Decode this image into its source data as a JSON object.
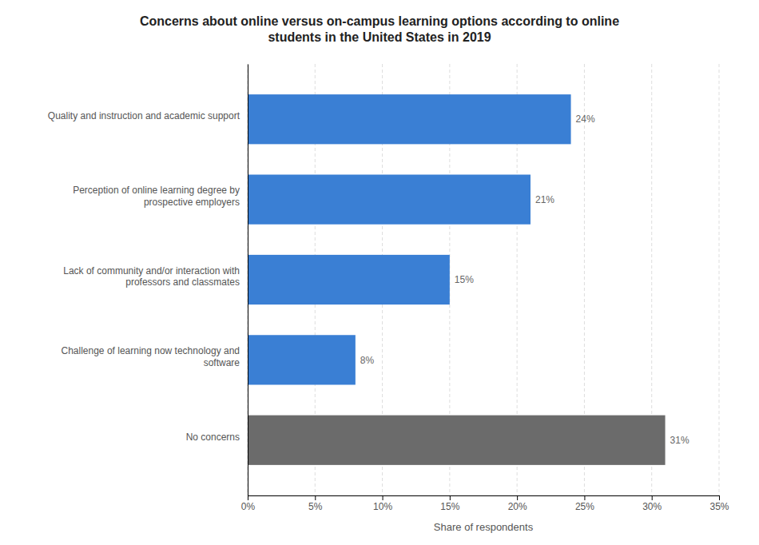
{
  "chart_data": {
    "type": "bar",
    "orientation": "horizontal",
    "title": "Concerns about online versus on-campus learning options according to online\nstudents in the United States in 2019",
    "categories": [
      "No concerns",
      "Challenge of learning now technology and\nsoftware",
      "Lack of community and/or interaction with\nprofessors and classmates",
      "Perception of online learning degree by\nprospective employers",
      "Quality and instruction and academic support"
    ],
    "values": [
      31,
      8,
      15,
      21,
      24
    ],
    "value_labels": [
      "31%",
      "8%",
      "15%",
      "21%",
      "24%"
    ],
    "data_labels": true,
    "colors": [
      "#6b6b6b",
      "#3a7fd4",
      "#3a7fd4",
      "#3a7fd4",
      "#3a7fd4"
    ],
    "xlabel": "Share of respondents",
    "xlim": [
      0,
      35
    ],
    "xticks": [
      {
        "value": 0,
        "label": "0%"
      },
      {
        "value": 5,
        "label": "5%"
      },
      {
        "value": 10,
        "label": "10%"
      },
      {
        "value": 15,
        "label": "15%"
      },
      {
        "value": 20,
        "label": "20%"
      },
      {
        "value": 25,
        "label": "25%"
      },
      {
        "value": 30,
        "label": "30%"
      },
      {
        "value": 35,
        "label": "35%"
      }
    ],
    "grid": true
  }
}
